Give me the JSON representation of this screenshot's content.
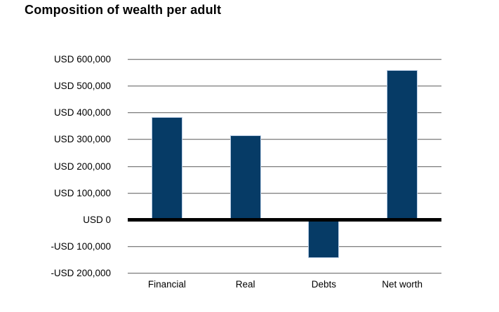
{
  "chart_data": {
    "type": "bar",
    "title": "Composition of wealth per adult",
    "categories": [
      "Financial",
      "Real",
      "Debts",
      "Net worth"
    ],
    "values": [
      385000,
      317000,
      -142000,
      560000
    ],
    "y_ticks": [
      {
        "label": "USD 600,000",
        "value": 600000
      },
      {
        "label": "USD 500,000",
        "value": 500000
      },
      {
        "label": "USD 400,000",
        "value": 400000
      },
      {
        "label": "USD 300,000",
        "value": 300000
      },
      {
        "label": "USD 200,000",
        "value": 200000
      },
      {
        "label": "USD 100,000",
        "value": 100000
      },
      {
        "label": "USD 0",
        "value": 0
      },
      {
        "label": "-USD 100,000",
        "value": -100000
      },
      {
        "label": "-USD 200,000",
        "value": -200000
      }
    ],
    "ylim": [
      -200000,
      600000
    ],
    "xlabel": "",
    "ylabel": "",
    "grid": "horizontal-only",
    "legend": "none",
    "colors": {
      "background": "#ffffff",
      "text": "#000000",
      "bar_fill": "#063b66",
      "bar_border": "#b8cce4",
      "gridline_top": "#7f7f7f",
      "gridline_bottom": "#d9d9d9",
      "zero_line": "#000000"
    }
  }
}
